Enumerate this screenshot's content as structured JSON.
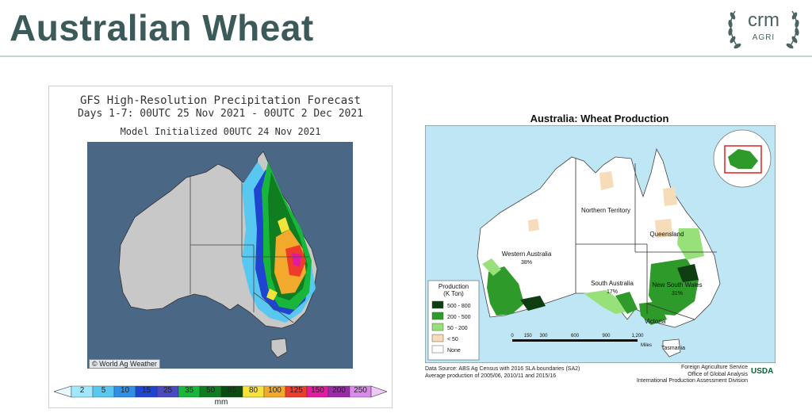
{
  "header": {
    "title": "Australian Wheat",
    "logo_main": "crm",
    "logo_sub": "AGRI"
  },
  "left_map": {
    "title_line1": "GFS High-Resolution Precipitation Forecast",
    "title_line2": "Days 1-7: 00UTC 25 Nov 2021 - 00UTC 2 Dec 2021",
    "title_line3": "Model Initialized 00UTC 24 Nov 2021",
    "credit": "© World Ag Weather",
    "colorbar_labels": [
      "2",
      "5",
      "10",
      "15",
      "25",
      "35",
      "50",
      "65",
      "80",
      "100",
      "125",
      "150",
      "200",
      "250"
    ],
    "colorbar_colors": [
      "#a0e8ff",
      "#59c8f0",
      "#2e8fe6",
      "#1f44d0",
      "#4a48c2",
      "#18b63a",
      "#0f7d20",
      "#0b4d10",
      "#f5e23a",
      "#f2a92c",
      "#ee3b2a",
      "#e21aa0",
      "#9a2aa8",
      "#d88be8"
    ],
    "colorbar_unit": "mm",
    "ocean_color": "#4a6785",
    "land_color": "#c8c8c8"
  },
  "right_map": {
    "title": "Australia: Wheat Production",
    "regions": [
      {
        "name": "Northern Territory",
        "share": ""
      },
      {
        "name": "Queensland",
        "share": ""
      },
      {
        "name": "Western Australia",
        "share": "38%"
      },
      {
        "name": "South Australia",
        "share": "17%"
      },
      {
        "name": "New South Wales",
        "share": "31%"
      },
      {
        "name": "Victoria",
        "share": ""
      },
      {
        "name": "Tasmania",
        "share": ""
      }
    ],
    "legend": {
      "title_line1": "Production",
      "title_line2": "(K Ton)",
      "items": [
        {
          "label": "500 - 800",
          "color": "#0f3d12"
        },
        {
          "label": "200 - 500",
          "color": "#2e9a2a"
        },
        {
          "label": "50 - 200",
          "color": "#98e07a"
        },
        {
          "label": "< 50",
          "color": "#f6dcb8"
        },
        {
          "label": "None",
          "color": "#ffffff"
        }
      ]
    },
    "scale": {
      "ticks": [
        "0",
        "150",
        "300",
        "600",
        "900",
        "1,200"
      ],
      "unit": "Miles"
    },
    "footer_left": [
      "Data Source: ABS Ag Census with 2016 SLA boundaries (SA2)",
      "Average production of 2005/06, 2010/11 and 2015/16"
    ],
    "footer_right": [
      "Foreign Agriculture Service",
      "Office of Global Analysis",
      "International Production Assessment Division"
    ],
    "agency_logo": "USDA",
    "ocean_color": "#bfe6f4"
  }
}
